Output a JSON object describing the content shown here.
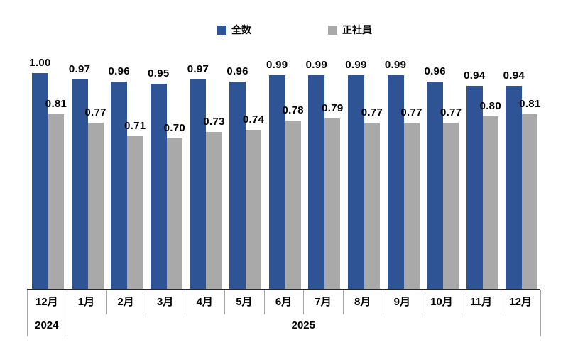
{
  "chart_data": {
    "type": "bar",
    "title": "",
    "categories": [
      "12月",
      "1月",
      "2月",
      "3月",
      "4月",
      "5月",
      "6月",
      "7月",
      "8月",
      "9月",
      "10月",
      "11月",
      "12月"
    ],
    "year_groups": [
      {
        "label": "2024",
        "span": 1
      },
      {
        "label": "2025",
        "span": 12
      }
    ],
    "series": [
      {
        "name": "全数",
        "color": "#2E5496",
        "values": [
          1.0,
          0.97,
          0.96,
          0.95,
          0.97,
          0.96,
          0.99,
          0.99,
          0.99,
          0.99,
          0.96,
          0.94,
          0.94
        ]
      },
      {
        "name": "正社員",
        "color": "#A9A9A9",
        "values": [
          0.81,
          0.77,
          0.71,
          0.7,
          0.73,
          0.74,
          0.78,
          0.79,
          0.77,
          0.77,
          0.77,
          0.8,
          0.81
        ]
      }
    ],
    "value_decimals": 2,
    "ylim": [
      0,
      1.05
    ],
    "grid": false,
    "legend_position": "top",
    "axis_color": "#262626",
    "divider_color": "#A6A6A6",
    "label_color": "#000000"
  }
}
